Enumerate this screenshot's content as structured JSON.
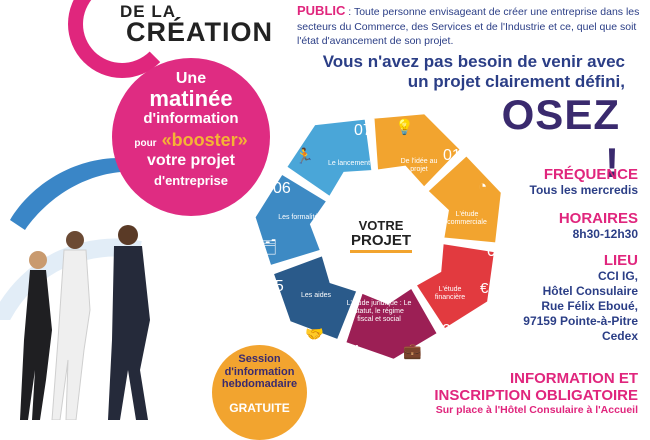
{
  "logo": {
    "line1": "DE LA",
    "line2": "CRÉATION"
  },
  "public": {
    "label": "PUBLIC",
    "text": " : Toute personne envisageant de créer une entreprise dans les secteurs du Commerce, des Services et de l'Industrie et ce, quel que soit l'état d'avancement de son projet."
  },
  "headline": {
    "line1": "Vous n'avez pas besoin de venir avec",
    "line2": "un projet clairement défini,",
    "osez": "OSEZ !"
  },
  "bubble": {
    "une": "Une",
    "matinee": "matinée",
    "information": "d'information",
    "pour": "pour",
    "booster": "«booster»",
    "votre": "votre projet",
    "entreprise": "d'entreprise"
  },
  "session": {
    "text1": "Session",
    "text2": "d'information",
    "text3": "hebdomadaire",
    "gratuite": "GRATUITE"
  },
  "wheel": {
    "center_top": "VOTRE",
    "center_bottom": "PROJET",
    "segments": [
      {
        "num": "01",
        "label": "De l'idée au projet",
        "color": "#f2a42f"
      },
      {
        "num": "02",
        "label": "L'étude commerciale",
        "color": "#f2a42f"
      },
      {
        "num": "03",
        "label": "L'étude financière",
        "color": "#e23a3f"
      },
      {
        "num": "04",
        "label": "L'étude juridique : Le statut, le régime fiscal et social",
        "color": "#9c1f55"
      },
      {
        "num": "05",
        "label": "Les aides",
        "color": "#2a5a8a"
      },
      {
        "num": "06",
        "label": "Les formalités",
        "color": "#3d8ac4"
      },
      {
        "num": "07",
        "label": "Le lancement",
        "color": "#4aa6d8"
      }
    ]
  },
  "info": {
    "frequence_title": "FRÉQUENCE",
    "frequence_value": "Tous les mercredis",
    "horaires_title": "HORAIRES",
    "horaires_value": "8h30-12h30",
    "lieu_title": "LIEU",
    "lieu_lines": [
      "CCI IG,",
      "Hôtel Consulaire",
      "Rue Félix Eboué,",
      "97159 Pointe-à-Pitre",
      "Cedex"
    ],
    "inscription_title1": "INFORMATION ET",
    "inscription_title2": "INSCRIPTION OBLIGATOIRE",
    "inscription_text": "Sur place à l'Hôtel Consulaire à l'Accueil"
  },
  "colors": {
    "pink": "#e0267d",
    "navy": "#2b3e86",
    "orange": "#f2a42f",
    "purple": "#3a2a6e"
  }
}
